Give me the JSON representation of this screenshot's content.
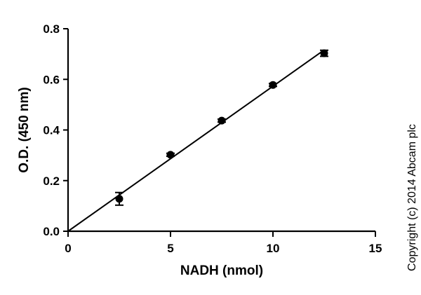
{
  "chart_data": {
    "type": "scatter",
    "title": "",
    "xlabel": "NADH (nmol)",
    "ylabel": "O.D. (450 nm)",
    "xlim": [
      0,
      15
    ],
    "ylim": [
      0.0,
      0.8
    ],
    "x_ticks": [
      0,
      5,
      10,
      15
    ],
    "x_tick_labels": [
      "0",
      "5",
      "10",
      "15"
    ],
    "y_ticks": [
      0.0,
      0.2,
      0.4,
      0.6,
      0.8
    ],
    "y_tick_labels": [
      "0.0",
      "0.2",
      "0.4",
      "0.6",
      "0.8"
    ],
    "grid": false,
    "legend": "none",
    "series": [
      {
        "x": [
          2.5,
          5,
          7.5,
          10,
          12.5
        ],
        "y": [
          0.128,
          0.302,
          0.437,
          0.578,
          0.703
        ],
        "error": [
          0.025,
          0.006,
          0.006,
          0.006,
          0.012
        ]
      }
    ],
    "fit_line": {
      "x": [
        0,
        12.5
      ],
      "y": [
        0.0,
        0.716
      ]
    },
    "annotations": [
      "Copyright (c) 2014 Abcam plc"
    ]
  }
}
